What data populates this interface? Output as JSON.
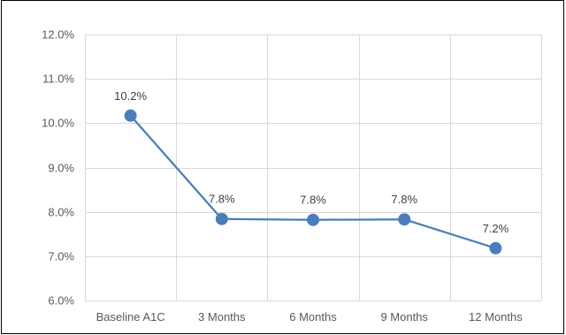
{
  "chart_data": {
    "type": "line",
    "title": "",
    "xlabel": "",
    "ylabel": "",
    "categories": [
      "Baseline A1C",
      "3 Months",
      "6 Months",
      "9 Months",
      "12 Months"
    ],
    "series": [
      {
        "values": [
          10.17,
          7.84,
          7.82,
          7.83,
          7.18
        ],
        "labels": [
          "10.2%",
          "7.8%",
          "7.8%",
          "7.8%",
          "7.2%"
        ],
        "color": "#4a7ebb"
      }
    ],
    "y_ticks": [
      6,
      7,
      8,
      9,
      10,
      11,
      12
    ],
    "y_tick_labels": [
      "6.0%",
      "7.0%",
      "8.0%",
      "9.0%",
      "10.0%",
      "11.0%",
      "12.0%"
    ],
    "ylim": [
      6,
      12
    ],
    "grid": true,
    "legend": "none",
    "colors": {
      "grid": "#d9d9d9",
      "tick_text": "#595959",
      "data_label_text": "#404040"
    }
  }
}
